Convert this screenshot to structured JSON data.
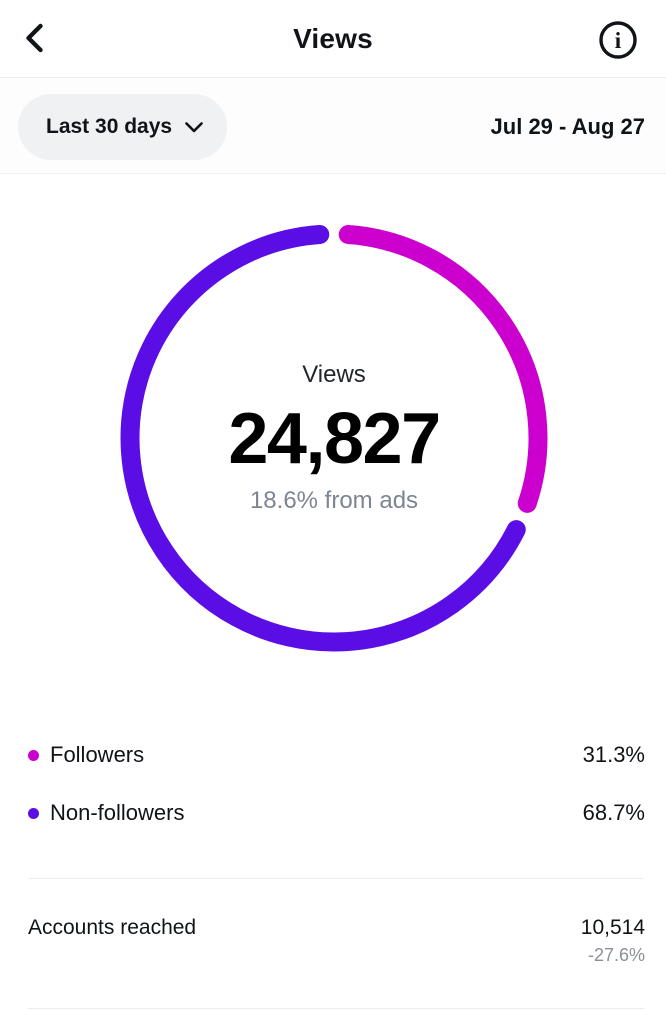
{
  "header": {
    "title": "Views",
    "back_icon": "chevron-left",
    "info_icon": "info-circle"
  },
  "filter": {
    "period_label": "Last 30 days",
    "date_range": "Jul 29 - Aug 27"
  },
  "chart_data": {
    "type": "pie",
    "donut": true,
    "title": "Views",
    "center_label": "Views",
    "center_value": "24,827",
    "center_value_num": 24827,
    "center_subtitle": "18.6% from ads",
    "ads_percent": 18.6,
    "start_angle_deg": 0,
    "legend_position": "below",
    "series": [
      {
        "name": "Followers",
        "percent": 31.3,
        "percent_label": "31.3%",
        "color": "#CB00CE"
      },
      {
        "name": "Non-followers",
        "percent": 68.7,
        "percent_label": "68.7%",
        "color": "#5A0DE4"
      }
    ]
  },
  "metrics": {
    "accounts_reached": {
      "label": "Accounts reached",
      "value": "10,514",
      "value_num": 10514,
      "change": "-27.6%",
      "change_num": -27.6
    }
  },
  "colors": {
    "followers": "#CB00CE",
    "non_followers": "#5A0DE4",
    "text_primary": "#101418",
    "text_secondary": "#7D8591",
    "divider": "#ECECEC",
    "pill_bg": "#F0F1F3"
  }
}
